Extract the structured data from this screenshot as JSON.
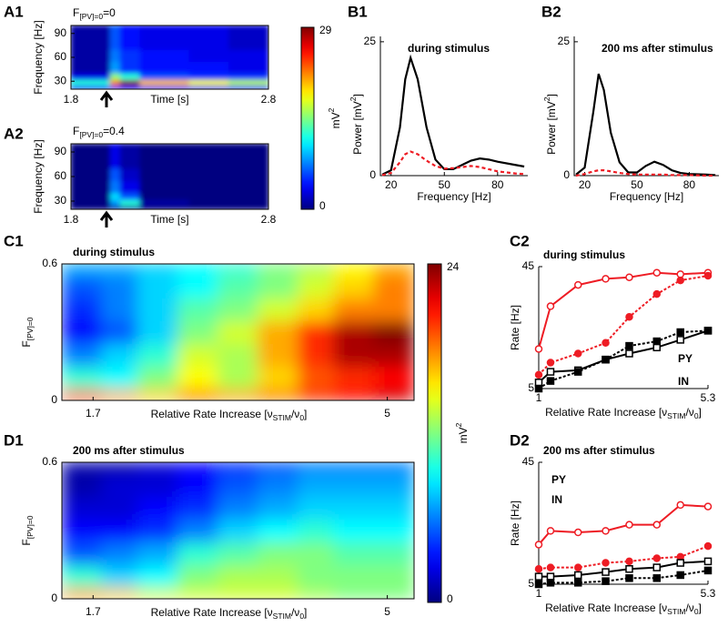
{
  "chart_data": [
    {
      "type": "heatmap",
      "panel": "A1",
      "title": [
        "F",
        "[PV]=0",
        "=0"
      ],
      "xlabel": "Time [s]",
      "ylabel": "Frequency [Hz]",
      "xlim": [
        1.8,
        2.8
      ],
      "xticks": [
        1.8,
        2.8
      ],
      "ylim": [
        20,
        100
      ],
      "yticks": [
        30,
        60,
        90
      ],
      "x_edges": [
        1.8,
        1.95,
        2.0,
        2.05,
        2.15,
        2.4,
        2.6,
        2.8
      ],
      "y_edges": [
        20,
        25,
        32,
        40,
        55,
        70,
        100
      ],
      "z": [
        [
          4,
          4,
          5,
          5,
          4,
          4,
          4
        ],
        [
          12,
          12,
          22,
          29,
          20,
          18,
          16
        ],
        [
          3,
          3,
          15,
          12,
          6,
          5,
          5
        ],
        [
          1,
          1,
          8,
          5,
          4,
          4,
          3
        ],
        [
          1,
          1,
          7,
          5,
          4,
          3,
          3
        ],
        [
          1,
          1,
          6,
          4,
          3,
          3,
          2
        ]
      ]
    },
    {
      "type": "heatmap",
      "panel": "A2",
      "title": [
        "F",
        "[PV]=0",
        "=0.4"
      ],
      "xlabel": "Time [s]",
      "ylabel": "Frequency [Hz]",
      "xlim": [
        1.8,
        2.8
      ],
      "xticks": [
        1.8,
        2.8
      ],
      "ylim": [
        20,
        100
      ],
      "yticks": [
        30,
        60,
        90
      ],
      "x_edges": [
        1.8,
        1.95,
        2.0,
        2.05,
        2.15,
        2.4,
        2.6,
        2.8
      ],
      "y_edges": [
        20,
        25,
        32,
        40,
        55,
        70,
        100
      ],
      "z": [
        [
          0,
          0,
          1,
          1,
          0,
          0,
          0
        ],
        [
          0,
          0,
          8,
          12,
          1,
          0,
          0
        ],
        [
          0,
          0,
          10,
          6,
          0,
          0,
          0
        ],
        [
          0,
          0,
          7,
          3,
          0,
          0,
          0
        ],
        [
          0,
          0,
          6,
          2,
          0,
          0,
          0
        ],
        [
          0,
          0,
          3,
          1,
          0,
          0,
          0
        ]
      ]
    },
    {
      "type": "colorbar",
      "lim": [
        0,
        29
      ],
      "ticks": [
        0,
        29
      ],
      "label": [
        "mV",
        "2"
      ]
    },
    {
      "type": "line",
      "panel": "B1",
      "annotation": "during stimulus",
      "xlabel": "Frequency [Hz]",
      "ylabel": [
        "Power [mV",
        "2",
        "]"
      ],
      "xlim": [
        14,
        97
      ],
      "xticks": [
        20,
        50,
        80
      ],
      "ylim": [
        0,
        26
      ],
      "yticks": [
        0,
        25
      ],
      "x": [
        15,
        20,
        25,
        28,
        31,
        35,
        40,
        45,
        50,
        55,
        60,
        65,
        70,
        75,
        80,
        90,
        95
      ],
      "series": [
        {
          "color": "#000000",
          "values": [
            0.2,
            1,
            9,
            18,
            22,
            18,
            9,
            3,
            1.2,
            1.2,
            2,
            2.8,
            3.2,
            3,
            2.6,
            2,
            1.7
          ]
        },
        {
          "color": "#ee1c24",
          "dash": true,
          "values": [
            0.1,
            0.5,
            2.5,
            4,
            4.5,
            4,
            2.8,
            1.8,
            1.3,
            1.4,
            1.6,
            1.8,
            1.6,
            1.2,
            0.8,
            0.4,
            0.3
          ]
        }
      ]
    },
    {
      "type": "line",
      "panel": "B2",
      "annotation": "200 ms after stimulus",
      "xlabel": "Frequency [Hz]",
      "ylabel": [
        "Power [mV",
        "2",
        "]"
      ],
      "xlim": [
        14,
        97
      ],
      "xticks": [
        20,
        50,
        80
      ],
      "ylim": [
        0,
        26
      ],
      "yticks": [
        0,
        25
      ],
      "x": [
        15,
        20,
        25,
        28,
        31,
        35,
        40,
        45,
        50,
        55,
        60,
        65,
        70,
        75,
        80,
        90,
        95
      ],
      "series": [
        {
          "color": "#000000",
          "values": [
            0.2,
            1.5,
            12,
            19,
            16,
            8,
            2.5,
            0.6,
            0.6,
            1.8,
            2.6,
            2,
            1,
            0.5,
            0.3,
            0.2,
            0.1
          ]
        },
        {
          "color": "#ee1c24",
          "dash": true,
          "values": [
            0,
            0.3,
            0.8,
            1,
            1,
            0.8,
            0.5,
            0.3,
            0.2,
            0.2,
            0.2,
            0.2,
            0.1,
            0.1,
            0.1,
            0,
            0
          ]
        }
      ]
    },
    {
      "type": "heatmap",
      "panel": "C1",
      "annotation": "during stimulus",
      "xlabel": [
        "Relative Rate Increase [ν",
        "STIM",
        "/ν",
        "0",
        "]"
      ],
      "ylabel": [
        "F",
        "[PV]=0"
      ],
      "xlim": [
        1.35,
        5.3
      ],
      "xticks": [
        1.7,
        5
      ],
      "ylim": [
        0,
        0.6
      ],
      "yticks": [
        0,
        0.6
      ],
      "x_edges": [
        1.35,
        1.8,
        2.2,
        2.65,
        3.1,
        3.55,
        4,
        4.4,
        4.85,
        5.3
      ],
      "y_edges": [
        0,
        0.05,
        0.15,
        0.25,
        0.35,
        0.45,
        0.55,
        0.6
      ],
      "z": [
        [
          19,
          17,
          16,
          18,
          17,
          18,
          20,
          21,
          22
        ],
        [
          10,
          9,
          12,
          15,
          13,
          16,
          19,
          20,
          21
        ],
        [
          6,
          8,
          10,
          14,
          13,
          17,
          20,
          23,
          23
        ],
        [
          3,
          5,
          8,
          12,
          14,
          17,
          20,
          23,
          24
        ],
        [
          4,
          6,
          8,
          11,
          12,
          14,
          16,
          18,
          18
        ],
        [
          5,
          6,
          8,
          9,
          11,
          12,
          14,
          16,
          18
        ],
        [
          7,
          7,
          8,
          9,
          10,
          12,
          13,
          15,
          17
        ]
      ]
    },
    {
      "type": "heatmap",
      "panel": "D1",
      "annotation": "200 ms after stimulus",
      "xlabel": [
        "Relative Rate Increase [ν",
        "STIM",
        "/ν",
        "0",
        "]"
      ],
      "ylabel": [
        "F",
        "[PV]=0"
      ],
      "xlim": [
        1.35,
        5.3
      ],
      "xticks": [
        1.7,
        5
      ],
      "ylim": [
        0,
        0.6
      ],
      "yticks": [
        0,
        0.6
      ],
      "x_edges": [
        1.35,
        1.8,
        2.2,
        2.65,
        3.1,
        3.55,
        4,
        4.4,
        4.85,
        5.3
      ],
      "y_edges": [
        0,
        0.05,
        0.15,
        0.25,
        0.35,
        0.45,
        0.55,
        0.6
      ],
      "z": [
        [
          17,
          16,
          14,
          14,
          14,
          14,
          13,
          12,
          12
        ],
        [
          10,
          8,
          9,
          12,
          13,
          13,
          12,
          12,
          12
        ],
        [
          5,
          6,
          7,
          10,
          11,
          12,
          12,
          11,
          11
        ],
        [
          3,
          3,
          4,
          6,
          8,
          9,
          10,
          9,
          9
        ],
        [
          2,
          2,
          3,
          4,
          6,
          7,
          8,
          8,
          8
        ],
        [
          1,
          2,
          2,
          3,
          5,
          6,
          7,
          7,
          7
        ],
        [
          1,
          1,
          2,
          3,
          4,
          5,
          6,
          6,
          6
        ]
      ]
    },
    {
      "type": "colorbar",
      "lim": [
        0,
        24
      ],
      "ticks": [
        0,
        24
      ],
      "label": [
        "mV",
        "2"
      ]
    },
    {
      "type": "line",
      "panel": "C2",
      "annotation": "during stimulus",
      "xlabel": [
        "Relative Rate Increase [ν",
        "STIM",
        "/ν",
        "0",
        "]"
      ],
      "ylabel": "Rate [Hz]",
      "xlim": [
        1,
        5.3
      ],
      "xticks": [
        1,
        5.3
      ],
      "ylim": [
        5,
        45
      ],
      "yticks": [
        5,
        45
      ],
      "x": [
        1,
        1.3,
        2,
        2.7,
        3.3,
        4,
        4.6,
        5.3
      ],
      "series": [
        {
          "color": "#ee1c24",
          "marker": "circle-open",
          "values": [
            18,
            32,
            39,
            41,
            41.5,
            43,
            42.5,
            43
          ]
        },
        {
          "color": "#ee1c24",
          "marker": "circle",
          "dash": true,
          "values": [
            9.5,
            13.5,
            16.5,
            20,
            28.5,
            36,
            40.5,
            42
          ]
        },
        {
          "color": "#000000",
          "marker": "square-open",
          "values": [
            7,
            10.5,
            11,
            14.5,
            16.5,
            18.5,
            21,
            24
          ]
        },
        {
          "color": "#000000",
          "marker": "square",
          "dash": true,
          "values": [
            5,
            7.5,
            10.5,
            14.5,
            19,
            20.5,
            23.5,
            24
          ]
        }
      ],
      "labels": [
        {
          "text": "PY",
          "color": "#000000"
        },
        {
          "text": "IN",
          "color": "#ee1c24"
        }
      ]
    },
    {
      "type": "line",
      "panel": "D2",
      "annotation": "200 ms after stimulus",
      "xlabel": [
        "Relative Rate Increase [ν",
        "STIM",
        "/ν",
        "0",
        "]"
      ],
      "ylabel": "Rate [Hz]",
      "xlim": [
        1,
        5.3
      ],
      "xticks": [
        1,
        5.3
      ],
      "ylim": [
        5,
        45
      ],
      "yticks": [
        5,
        45
      ],
      "x": [
        1,
        1.3,
        2,
        2.7,
        3.3,
        4,
        4.6,
        5.3
      ],
      "series": [
        {
          "color": "#ee1c24",
          "marker": "circle-open",
          "values": [
            18,
            22.5,
            22,
            22.5,
            24.5,
            24.5,
            31,
            30.5
          ]
        },
        {
          "color": "#ee1c24",
          "marker": "circle",
          "dash": true,
          "values": [
            10,
            10.5,
            10.5,
            12,
            12.5,
            13.5,
            14,
            17.5
          ]
        },
        {
          "color": "#000000",
          "marker": "square-open",
          "values": [
            7.5,
            7.5,
            8,
            9,
            10,
            10.5,
            12,
            12.5
          ]
        },
        {
          "color": "#000000",
          "marker": "square",
          "dash": true,
          "values": [
            5,
            5.5,
            5.5,
            6,
            7,
            7,
            8,
            9.5
          ]
        }
      ],
      "labels": [
        {
          "text": "PY",
          "color": "#000000"
        },
        {
          "text": "IN",
          "color": "#ee1c24"
        }
      ]
    }
  ]
}
